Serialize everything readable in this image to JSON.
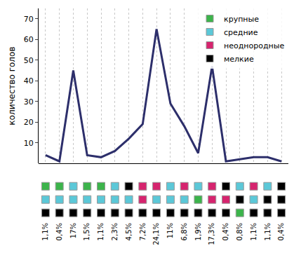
{
  "chart_data": {
    "type": "line",
    "y_label": "количество голов",
    "categories": [
      "1,1%",
      "0,4%",
      "17%",
      "1,5%",
      "1,1%",
      "2,3%",
      "4,5%",
      "7,2%",
      "24,1%",
      "11%",
      "6,8%",
      "1,9%",
      "17,3%",
      "0,4%",
      "0,8%",
      "1,1%",
      "1,1%",
      "0,4%"
    ],
    "values": [
      4,
      1,
      45,
      4,
      3,
      6,
      12,
      19,
      65,
      29,
      18,
      5,
      47,
      1,
      2,
      3,
      3,
      1
    ],
    "color": "#2d2f6b",
    "ylim": [
      0,
      75
    ],
    "yticks": [
      10,
      20,
      30,
      40,
      50,
      60,
      70
    ],
    "grid": true,
    "legend": "top right",
    "groups": [
      {
        "name": "крупные",
        "color": "#3cb44b"
      },
      {
        "name": "средние",
        "color": "#5bc8d8"
      },
      {
        "name": "неоднородные",
        "color": "#d6246e"
      },
      {
        "name": "мелкие",
        "color": "#000000"
      }
    ],
    "squares": [
      [
        "крупные",
        "крупные",
        "средние",
        "крупные",
        "крупные",
        "средние",
        "мелкие",
        "неоднородные",
        "неоднородные",
        "средние",
        "неоднородные",
        "средние",
        "неоднородные",
        "мелкие",
        "средние",
        "неоднородные",
        "средние",
        "мелкие"
      ],
      [
        "средние",
        "средние",
        "средние",
        "средние",
        "средние",
        "средние",
        "средние",
        "неоднородные",
        "средние",
        "средние",
        "средние",
        "крупные",
        "неоднородные",
        "неоднородные",
        "мелкие",
        "средние",
        "мелкие",
        "мелкие"
      ],
      [
        "мелкие",
        "мелкие",
        "мелкие",
        "мелкие",
        "мелкие",
        "мелкие",
        "мелкие",
        "мелкие",
        "мелкие",
        "мелкие",
        "мелкие",
        "мелкие",
        "мелкие",
        "мелкие",
        "крупные",
        "мелкие",
        "мелкие",
        "мелкие"
      ]
    ]
  }
}
